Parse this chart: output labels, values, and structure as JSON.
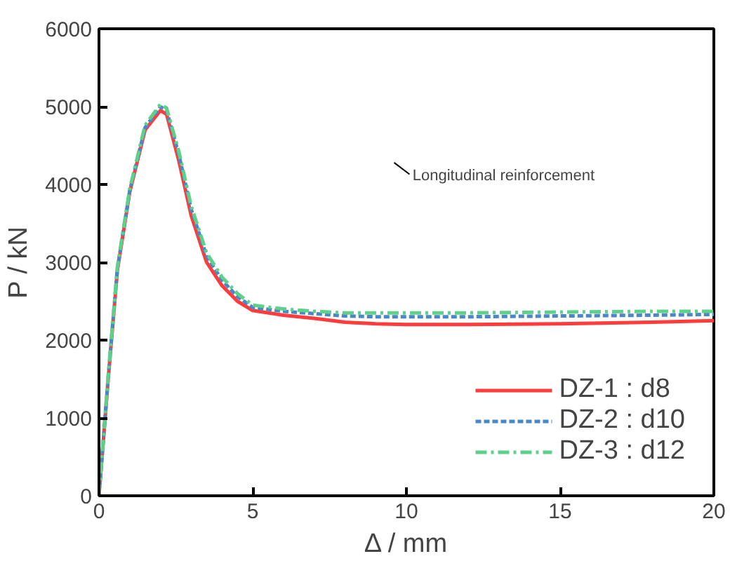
{
  "chart_data": {
    "type": "line",
    "xlabel": "Δ / mm",
    "ylabel": "P / kN",
    "xlim": [
      0,
      20
    ],
    "ylim": [
      0,
      6000
    ],
    "xticks": [
      0,
      5,
      10,
      15,
      20
    ],
    "yticks": [
      0,
      1000,
      2000,
      3000,
      4000,
      5000,
      6000
    ],
    "grid": false,
    "legend": "bottom right",
    "annotations": [
      "Longitudinal reinforcement"
    ],
    "series": [
      {
        "name": "DZ-1 : d8",
        "color": "#ff3b3b",
        "line_style": "solid",
        "x": [
          0,
          0.3,
          0.6,
          1,
          1.5,
          2,
          2.2,
          2.6,
          3,
          3.5,
          4,
          4.5,
          5,
          6,
          7,
          8,
          9,
          10,
          12,
          15,
          18,
          20
        ],
        "values": [
          0,
          1500,
          2900,
          3900,
          4700,
          4950,
          4900,
          4300,
          3600,
          3000,
          2700,
          2500,
          2380,
          2320,
          2280,
          2230,
          2210,
          2200,
          2200,
          2210,
          2230,
          2250
        ]
      },
      {
        "name": "DZ-2 : d10",
        "color": "#4a86c8",
        "line_style": "dashed",
        "x": [
          0,
          0.3,
          0.6,
          1,
          1.5,
          2,
          2.2,
          2.6,
          3,
          3.5,
          4,
          4.5,
          5,
          6,
          7,
          8,
          9,
          10,
          12,
          15,
          18,
          20
        ],
        "values": [
          0,
          1520,
          2920,
          3920,
          4730,
          5000,
          4950,
          4380,
          3680,
          3080,
          2770,
          2560,
          2420,
          2370,
          2340,
          2310,
          2300,
          2300,
          2300,
          2310,
          2320,
          2330
        ]
      },
      {
        "name": "DZ-3 : d12",
        "color": "#5fd08a",
        "line_style": "dashdot",
        "x": [
          0,
          0.3,
          0.6,
          1,
          1.5,
          2,
          2.2,
          2.6,
          3,
          3.5,
          4,
          4.5,
          5,
          6,
          7,
          8,
          9,
          10,
          12,
          15,
          18,
          20
        ],
        "values": [
          0,
          1540,
          2940,
          3940,
          4760,
          5030,
          4980,
          4420,
          3720,
          3120,
          2810,
          2600,
          2450,
          2400,
          2370,
          2350,
          2350,
          2350,
          2350,
          2360,
          2370,
          2370
        ]
      }
    ]
  }
}
